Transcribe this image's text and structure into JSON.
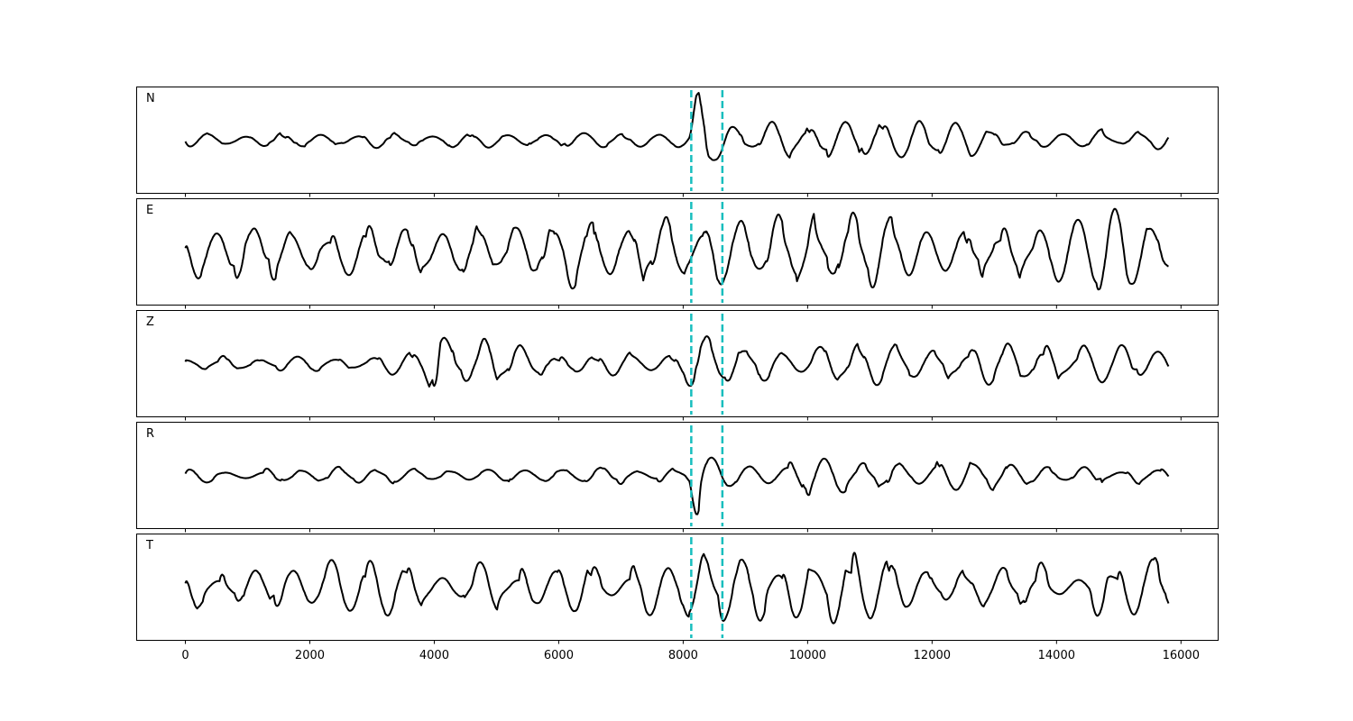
{
  "chart_data": {
    "type": "line",
    "title": "",
    "xlabel": "",
    "ylabel": "",
    "xlim": [
      -790,
      16590
    ],
    "x_ticks": [
      0,
      2000,
      4000,
      6000,
      8000,
      10000,
      12000,
      14000,
      16000
    ],
    "x_tick_labels": [
      "0",
      "2000",
      "4000",
      "6000",
      "8000",
      "10000",
      "12000",
      "14000",
      "16000"
    ],
    "x_data_range": [
      0,
      15800
    ],
    "y_ticks_shown": false,
    "grid": false,
    "line_color": "#000000",
    "marker_line_color": "#17bebe",
    "marker_lines_x": [
      8130,
      8630
    ],
    "marker_line_style": "dashed",
    "traces": [
      {
        "label": "N",
        "amplitude_envelope": [
          [
            0,
            0.12
          ],
          [
            8100,
            0.12
          ],
          [
            8250,
            0.95
          ],
          [
            8700,
            0.75
          ],
          [
            9000,
            0.4
          ],
          [
            10300,
            0.35
          ],
          [
            12500,
            0.3
          ],
          [
            13500,
            0.15
          ],
          [
            15000,
            0.18
          ],
          [
            15800,
            0.2
          ]
        ]
      },
      {
        "label": "E",
        "amplitude_envelope": [
          [
            0,
            0.45
          ],
          [
            2000,
            0.5
          ],
          [
            4000,
            0.45
          ],
          [
            7400,
            0.6
          ],
          [
            8000,
            0.5
          ],
          [
            9000,
            0.8
          ],
          [
            10600,
            0.8
          ],
          [
            12000,
            0.4
          ],
          [
            13500,
            0.45
          ],
          [
            14500,
            0.7
          ],
          [
            15800,
            0.7
          ]
        ]
      },
      {
        "label": "Z",
        "amplitude_envelope": [
          [
            0,
            0.13
          ],
          [
            3800,
            0.2
          ],
          [
            4100,
            0.9
          ],
          [
            4300,
            0.5
          ],
          [
            5300,
            0.45
          ],
          [
            5600,
            0.18
          ],
          [
            8000,
            0.22
          ],
          [
            8250,
            0.55
          ],
          [
            8700,
            0.3
          ],
          [
            9600,
            0.4
          ],
          [
            12000,
            0.35
          ],
          [
            15800,
            0.3
          ]
        ]
      },
      {
        "label": "R",
        "amplitude_envelope": [
          [
            0,
            0.12
          ],
          [
            8100,
            0.15
          ],
          [
            8250,
            0.9
          ],
          [
            8700,
            0.7
          ],
          [
            9000,
            0.4
          ],
          [
            10300,
            0.35
          ],
          [
            12500,
            0.3
          ],
          [
            13500,
            0.15
          ],
          [
            15000,
            0.2
          ],
          [
            15800,
            0.2
          ]
        ]
      },
      {
        "label": "T",
        "amplitude_envelope": [
          [
            0,
            0.4
          ],
          [
            7300,
            0.45
          ],
          [
            8000,
            0.4
          ],
          [
            8250,
            0.9
          ],
          [
            8700,
            0.5
          ],
          [
            9500,
            0.75
          ],
          [
            10600,
            0.75
          ],
          [
            12000,
            0.35
          ],
          [
            14000,
            0.45
          ],
          [
            15500,
            0.55
          ],
          [
            15800,
            0.5
          ]
        ]
      }
    ]
  }
}
